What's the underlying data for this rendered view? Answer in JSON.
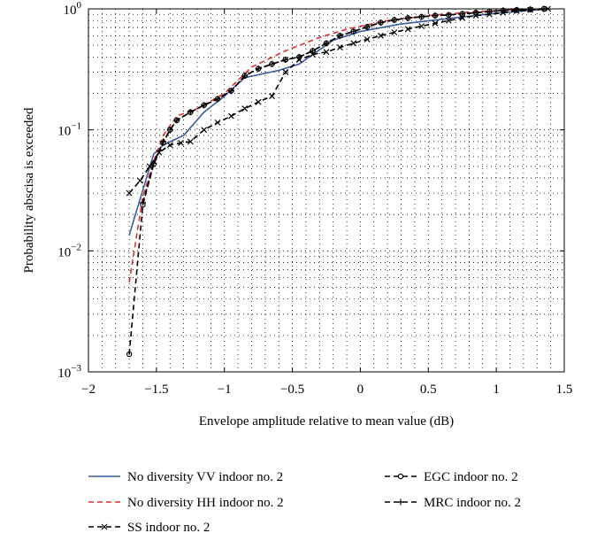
{
  "chart_data": {
    "type": "line",
    "title": "",
    "xlabel": "Envelope amplitude relative to mean value (dB)",
    "ylabel": "Probability abscisa is exceeded",
    "xlim": [
      -2,
      1.5
    ],
    "ylim": [
      0.001,
      1
    ],
    "yscale": "log",
    "grid": true,
    "legend_position": "bottom",
    "x_ticks": [
      -2,
      -1.5,
      -1,
      -0.5,
      0,
      0.5,
      1,
      1.5
    ],
    "x_tick_labels": [
      "−2",
      "−1.5",
      "−1",
      "−0.5",
      "0",
      "0.5",
      "1",
      "1.5"
    ],
    "y_ticks": [
      0.001,
      0.01,
      0.1,
      1
    ],
    "y_tick_base": "10",
    "y_tick_exponents": [
      "−3",
      "−2",
      "−1",
      "0"
    ],
    "series": [
      {
        "name": "No diversity VV indoor no. 2",
        "color": "#3a5ba0",
        "dash": "solid",
        "marker": "none",
        "x": [
          -1.7,
          -1.52,
          -1.45,
          -1.3,
          -1.15,
          -1.0,
          -0.85,
          -0.6,
          -0.45,
          -0.2,
          0.0,
          0.3,
          0.6,
          1.0,
          1.3,
          1.38
        ],
        "y": [
          0.0135,
          0.063,
          0.075,
          0.09,
          0.14,
          0.19,
          0.27,
          0.31,
          0.35,
          0.55,
          0.65,
          0.75,
          0.82,
          0.92,
          0.98,
          1.0
        ]
      },
      {
        "name": "No diversity HH indoor no. 2",
        "color": "#e03030",
        "dash": "dashed",
        "marker": "none",
        "x": [
          -1.7,
          -1.6,
          -1.52,
          -1.45,
          -1.35,
          -1.2,
          -1.0,
          -0.8,
          -0.55,
          -0.3,
          -0.1,
          0.2,
          0.5,
          0.8,
          1.1,
          1.38
        ],
        "y": [
          0.0055,
          0.028,
          0.055,
          0.09,
          0.13,
          0.15,
          0.2,
          0.33,
          0.45,
          0.58,
          0.68,
          0.8,
          0.88,
          0.94,
          0.98,
          1.0
        ]
      },
      {
        "name": "EGC indoor no. 2",
        "color": "#000000",
        "dash": "dashed",
        "marker": "circle",
        "x": [
          -1.7,
          -1.6,
          -1.52,
          -1.45,
          -1.4,
          -1.35,
          -1.25,
          -1.15,
          -1.05,
          -0.95,
          -0.85,
          -0.75,
          -0.65,
          -0.55,
          -0.45,
          -0.35,
          -0.25,
          -0.15,
          -0.05,
          0.05,
          0.15,
          0.25,
          0.35,
          0.45,
          0.55,
          0.65,
          0.75,
          0.85,
          0.95,
          1.05,
          1.15,
          1.25,
          1.35
        ],
        "y": [
          0.0014,
          0.024,
          0.052,
          0.078,
          0.1,
          0.12,
          0.14,
          0.16,
          0.18,
          0.21,
          0.28,
          0.32,
          0.35,
          0.38,
          0.4,
          0.45,
          0.52,
          0.6,
          0.65,
          0.71,
          0.77,
          0.81,
          0.84,
          0.86,
          0.88,
          0.89,
          0.91,
          0.93,
          0.95,
          0.97,
          0.98,
          0.99,
          1.0
        ]
      },
      {
        "name": "MRC indoor no. 2",
        "color": "#000000",
        "dash": "dashed",
        "marker": "plus",
        "x": [
          -1.6,
          -1.52,
          -1.45,
          -1.4,
          -1.35,
          -1.25,
          -1.15,
          -1.05,
          -0.95,
          -0.85,
          -0.75,
          -0.65,
          -0.55,
          -0.45,
          -0.35,
          -0.25,
          -0.15,
          -0.05,
          0.05,
          0.15,
          0.25,
          0.35,
          0.45,
          0.55,
          0.65,
          0.75,
          0.85,
          0.95,
          1.05,
          1.15,
          1.25,
          1.35
        ],
        "y": [
          0.025,
          0.053,
          0.08,
          0.1,
          0.12,
          0.14,
          0.16,
          0.18,
          0.21,
          0.28,
          0.32,
          0.35,
          0.38,
          0.4,
          0.45,
          0.52,
          0.6,
          0.65,
          0.71,
          0.77,
          0.81,
          0.84,
          0.86,
          0.88,
          0.89,
          0.91,
          0.93,
          0.95,
          0.97,
          0.98,
          0.99,
          1.0
        ]
      },
      {
        "name": "SS indoor no. 2",
        "color": "#000000",
        "dash": "dashed",
        "marker": "x",
        "x": [
          -1.7,
          -1.62,
          -1.55,
          -1.48,
          -1.4,
          -1.32,
          -1.25,
          -1.15,
          -1.05,
          -0.95,
          -0.85,
          -0.75,
          -0.65,
          -0.55,
          -0.45,
          -0.35,
          -0.25,
          -0.15,
          -0.05,
          0.05,
          0.15,
          0.25,
          0.35,
          0.45,
          0.55,
          0.65,
          0.75,
          0.85,
          0.95,
          1.05,
          1.15,
          1.25,
          1.38
        ],
        "y": [
          0.03,
          0.038,
          0.05,
          0.065,
          0.075,
          0.078,
          0.08,
          0.1,
          0.115,
          0.13,
          0.15,
          0.17,
          0.19,
          0.3,
          0.38,
          0.42,
          0.44,
          0.48,
          0.52,
          0.56,
          0.6,
          0.64,
          0.68,
          0.72,
          0.76,
          0.8,
          0.84,
          0.88,
          0.9,
          0.93,
          0.96,
          0.98,
          1.0
        ]
      }
    ]
  }
}
